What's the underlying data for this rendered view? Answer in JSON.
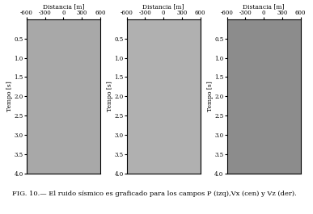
{
  "chart_data": [
    {
      "type": "image",
      "x_label": "Distancia [m]",
      "y_label": "Tempo [s]",
      "xlim": [
        -600,
        600
      ],
      "xticks": [
        -600,
        -300,
        0,
        300,
        600
      ],
      "ylim": [
        4.0,
        0.0
      ],
      "yticks": [
        {
          "value": 0.5,
          "label": "0.5"
        },
        {
          "value": 1.0,
          "label": "1.0"
        },
        {
          "value": 1.5,
          "label": "1.5"
        },
        {
          "value": 2.0,
          "label": "2.0"
        },
        {
          "value": 2.5,
          "label": "2.5"
        },
        {
          "value": 3.0,
          "label": "3.0"
        },
        {
          "value": 3.5,
          "label": "3.5"
        },
        {
          "value": 4.0,
          "label": "4.0"
        }
      ],
      "color": "#a8a8a8"
    },
    {
      "type": "image",
      "x_label": "Distancia [m]",
      "y_label": "Tempo [s]",
      "xlim": [
        -600,
        600
      ],
      "xticks": [
        -600,
        -300,
        0,
        300,
        600
      ],
      "ylim": [
        4.0,
        0.0
      ],
      "yticks": [
        {
          "value": 0.5,
          "label": "0.5"
        },
        {
          "value": 1.0,
          "label": "1.0"
        },
        {
          "value": 1.5,
          "label": "1.5"
        },
        {
          "value": 2.0,
          "label": "2.0"
        },
        {
          "value": 2.5,
          "label": "2.5"
        },
        {
          "value": 3.0,
          "label": "3.0"
        },
        {
          "value": 3.5,
          "label": "3.5"
        },
        {
          "value": 4.0,
          "label": "4.0"
        }
      ],
      "color": "#b0b0b0"
    },
    {
      "type": "image",
      "x_label": "Distancia [m]",
      "y_label": "Tempo [s]",
      "xlim": [
        -600,
        600
      ],
      "xticks": [
        -600,
        -300,
        0,
        300,
        600
      ],
      "ylim": [
        4.0,
        0.0
      ],
      "yticks": [
        {
          "value": 0.5,
          "label": "0.5"
        },
        {
          "value": 1.0,
          "label": "1.0"
        },
        {
          "value": 1.5,
          "label": "1.5"
        },
        {
          "value": 2.0,
          "label": "2.0"
        },
        {
          "value": 2.5,
          "label": "2.5"
        },
        {
          "value": 3.0,
          "label": "3.0"
        },
        {
          "value": 3.5,
          "label": "3.5"
        },
        {
          "value": 4.0,
          "label": "4.0"
        }
      ],
      "color": "#8c8c8c"
    }
  ],
  "caption": "FIG. 10.— El ruido sísmico es graficado para los campos P (izq),Vx (cen) y Vz (der)."
}
